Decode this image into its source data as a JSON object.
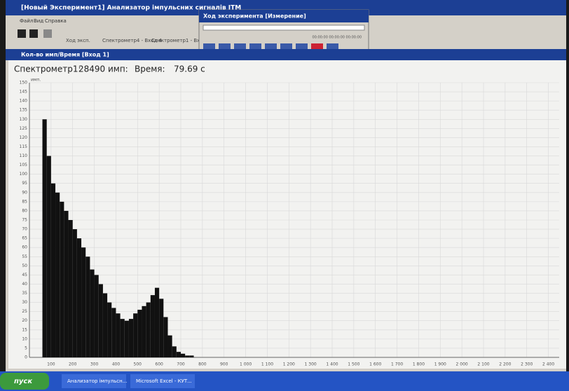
{
  "window": {
    "title": "[Новый Эксперимент1] Анализатор імпульсних сигналів ІТМ",
    "menu": [
      "Файл",
      "Вид",
      "Справка"
    ],
    "toolbar": [
      "Ход эксп.",
      "Спектрометр4 - Вход 4",
      "Спектрометр1 - Вход"
    ],
    "dialog_title": "Ход эксперимента [Измерение]",
    "dialog_time": "00:00:00 00:00:00 00:00:00",
    "inner_title": "Кол-во имп/Время [Вход 1]",
    "header": {
      "device": "Спектрометр1:",
      "count": "28490 имп:",
      "time_label": "Время:",
      "time": "79.69 с"
    },
    "taskbar": {
      "start": "пуск",
      "tasks": [
        "Анализатор імпульсн...",
        "Microsoft Excel - КУТ..."
      ]
    }
  },
  "chart_data": {
    "type": "histogram",
    "ylabel": "имп.",
    "color": "#111111",
    "grid": true,
    "bins": [
      60,
      80,
      100,
      120,
      140,
      160,
      180,
      200,
      220,
      240,
      260,
      280,
      300,
      320,
      340,
      360,
      380,
      400,
      420,
      440,
      460,
      480,
      500,
      520,
      540,
      560,
      580,
      600,
      620,
      640,
      660,
      680,
      700,
      720,
      740,
      760
    ],
    "values": [
      130,
      110,
      95,
      90,
      85,
      80,
      75,
      70,
      65,
      60,
      55,
      48,
      45,
      40,
      35,
      30,
      27,
      24,
      21,
      20,
      21,
      24,
      26,
      28,
      30,
      34,
      38,
      32,
      22,
      12,
      6,
      3,
      2,
      1,
      1
    ],
    "xlim": [
      0,
      2450
    ],
    "ylim": [
      0,
      150
    ],
    "xticks": [
      100,
      200,
      300,
      400,
      500,
      600,
      700,
      800,
      900,
      {
        "value": 1000,
        "label": "1 000"
      },
      {
        "value": 1100,
        "label": "1 100"
      },
      {
        "value": 1200,
        "label": "1 200"
      },
      {
        "value": 1300,
        "label": "1 300"
      },
      {
        "value": 1400,
        "label": "1 400"
      },
      {
        "value": 1500,
        "label": "1 500"
      },
      {
        "value": 1600,
        "label": "1 600"
      },
      {
        "value": 1700,
        "label": "1 700"
      },
      {
        "value": 1800,
        "label": "1 800"
      },
      {
        "value": 1900,
        "label": "1 900"
      },
      {
        "value": 2000,
        "label": "2 000"
      },
      {
        "value": 2100,
        "label": "2 100"
      },
      {
        "value": 2200,
        "label": "2 200"
      },
      {
        "value": 2300,
        "label": "2 300"
      },
      {
        "value": 2400,
        "label": "2 400"
      }
    ],
    "yticks": [
      0,
      5,
      10,
      15,
      20,
      25,
      30,
      35,
      40,
      45,
      50,
      55,
      60,
      65,
      70,
      75,
      80,
      85,
      90,
      95,
      100,
      105,
      110,
      115,
      120,
      125,
      130,
      135,
      140,
      145,
      150
    ]
  }
}
